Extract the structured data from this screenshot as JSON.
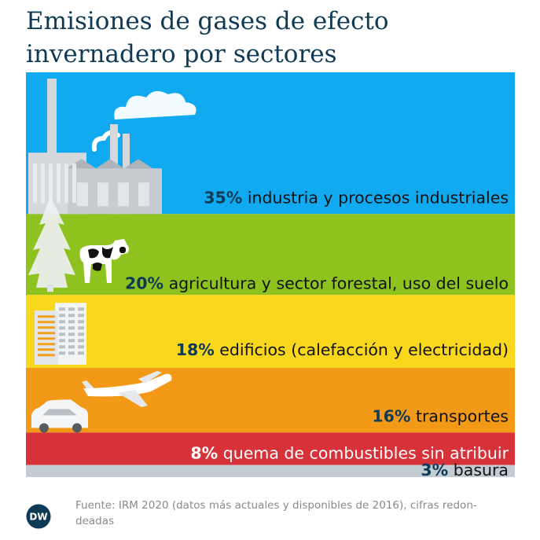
{
  "chart_data": {
    "type": "bar",
    "orientation": "stacked-horizontal-bands",
    "title": "Emisiones de gases de efecto invernadero por sectores",
    "title_lines": [
      "Emisiones de gases de efecto",
      "invernadero por sectores"
    ],
    "unit": "%",
    "categories": [
      "industria y procesos industriales",
      "agricultura y sector forestal, uso del suelo",
      "edificios (calefacción y electricidad)",
      "transportes",
      "quema de combustibles sin atribuir",
      "basura"
    ],
    "values": [
      35,
      20,
      18,
      16,
      8,
      3
    ],
    "value_labels": [
      "35%",
      "20%",
      "18%",
      "16%",
      "8%",
      "3%"
    ],
    "colors": [
      "#11aaf0",
      "#8dc21f",
      "#f9d71c",
      "#f29a18",
      "#d7313a",
      "#c2cdd3"
    ],
    "icons": [
      "factory-icon",
      "tree-and-cow-icon",
      "building-icon",
      "airplane-and-car-icon"
    ]
  },
  "source": "Fuente: IRM 2020 (datos más actuales y disponibles de 2016), cifras redondeadas",
  "source_lines": [
    "Fuente: IRM 2020 (datos más actuales y disponibles de 2016), cifras redon-",
    "deadas"
  ],
  "logo_text": "DW"
}
